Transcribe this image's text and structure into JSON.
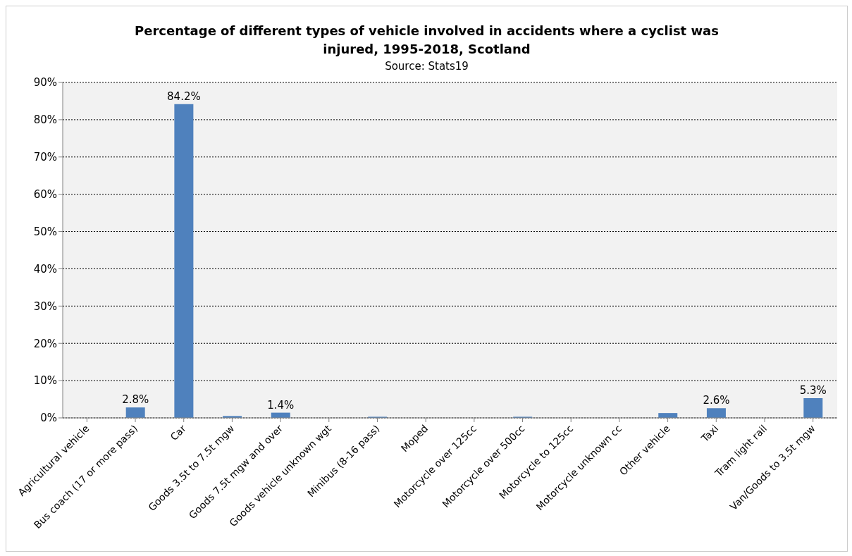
{
  "chart_data": {
    "type": "bar",
    "title": "Percentage of different types of vehicle involved in accidents where a cyclist was injured, 1995-2018, Scotland",
    "subtitle": "Source: Stats19",
    "categories": [
      "Agricultural vehicle",
      "Bus coach (17 or more pass)",
      "Car",
      "Goods 3.5t to 7.5t mgw",
      "Goods 7.5t mgw and over",
      "Goods vehicle unknown wgt",
      "Minibus (8-16 pass)",
      "Moped",
      "Motorcycle over 125cc",
      "Motorcycle over 500cc",
      "Motorcycle to 125cc",
      "Motorcycle unknown cc",
      "Other vehicle",
      "Taxi",
      "Tram light rail",
      "Van/Goods to 3.5t mgw"
    ],
    "values": [
      0,
      2.8,
      84.2,
      0.5,
      1.4,
      0,
      0.3,
      0,
      0,
      0.3,
      0,
      0,
      1.3,
      2.6,
      0,
      5.3
    ],
    "value_labels": [
      null,
      "2.8%",
      "84.2%",
      null,
      "1.4%",
      null,
      null,
      null,
      null,
      null,
      null,
      null,
      null,
      "2.6%",
      null,
      "5.3%"
    ],
    "color": "#4f81bd",
    "ylim": [
      0,
      90
    ],
    "yticks": [
      {
        "value": 0,
        "label": "0%"
      },
      {
        "value": 10,
        "label": "10%"
      },
      {
        "value": 20,
        "label": "20%"
      },
      {
        "value": 30,
        "label": "30%"
      },
      {
        "value": 40,
        "label": "40%"
      },
      {
        "value": 50,
        "label": "50%"
      },
      {
        "value": 60,
        "label": "60%"
      },
      {
        "value": 70,
        "label": "70%"
      },
      {
        "value": 80,
        "label": "80%"
      },
      {
        "value": 90,
        "label": "90%"
      }
    ],
    "grid": "y"
  }
}
